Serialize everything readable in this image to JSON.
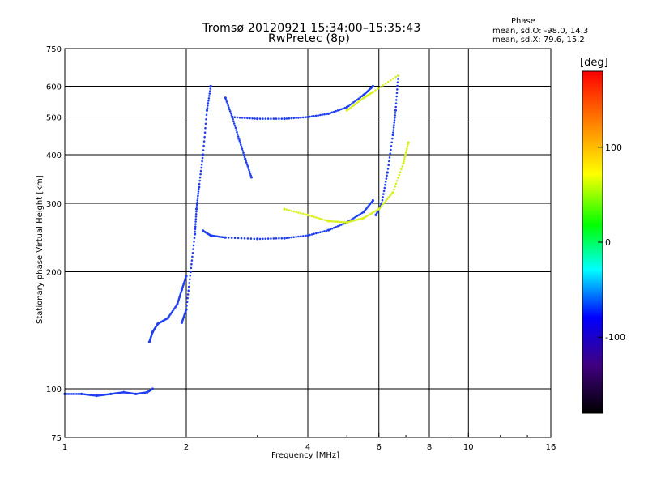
{
  "header": {
    "title_line1": "Tromsø 20120921 15:34:00–15:35:43",
    "title_line2": "RwPretec (8p)"
  },
  "phase_stats": {
    "title": "Phase",
    "o_line": "mean, sd,O: -98.0, 14.3",
    "x_line": "mean, sd,X:  79.6, 15.2"
  },
  "colorbar": {
    "unit_label": "[deg]",
    "tick_labels": [
      "100",
      "0",
      "-100"
    ],
    "tick_values": [
      100,
      0,
      -100
    ],
    "range": [
      -180,
      180
    ]
  },
  "chart_data": {
    "type": "scatter",
    "xlabel": "Frequency [MHz]",
    "ylabel": "Stationary phase Virtual Height [km]",
    "xscale": "log",
    "yscale": "log",
    "xlim": [
      1,
      16
    ],
    "ylim": [
      75,
      750
    ],
    "x_ticks": [
      1,
      2,
      4,
      6,
      8,
      10,
      16
    ],
    "x_tick_labels": [
      "1",
      "2",
      "4",
      "6",
      "8",
      "10",
      "16"
    ],
    "y_ticks": [
      75,
      100,
      200,
      300,
      400,
      500,
      600,
      750
    ],
    "y_tick_labels": [
      "75",
      "100",
      "200",
      "300",
      "400",
      "500",
      "600",
      "750"
    ],
    "grid": true,
    "color_by": "phase (deg)",
    "traces": [
      {
        "phase": -100,
        "points": [
          [
            1.0,
            97
          ],
          [
            1.1,
            97
          ],
          [
            1.2,
            96
          ],
          [
            1.3,
            97
          ],
          [
            1.4,
            98
          ],
          [
            1.5,
            97
          ],
          [
            1.6,
            98
          ],
          [
            1.65,
            100
          ]
        ]
      },
      {
        "phase": -100,
        "points": [
          [
            1.62,
            132
          ],
          [
            1.65,
            140
          ],
          [
            1.7,
            147
          ],
          [
            1.8,
            152
          ],
          [
            1.9,
            165
          ],
          [
            1.95,
            180
          ],
          [
            2.0,
            195
          ]
        ]
      },
      {
        "phase": -100,
        "points": [
          [
            1.95,
            148
          ],
          [
            2.0,
            160
          ],
          [
            2.05,
            200
          ],
          [
            2.1,
            250
          ],
          [
            2.12,
            290
          ],
          [
            2.15,
            330
          ],
          [
            2.2,
            400
          ],
          [
            2.25,
            520
          ],
          [
            2.3,
            600
          ]
        ]
      },
      {
        "phase": -100,
        "points": [
          [
            2.2,
            255
          ],
          [
            2.3,
            248
          ],
          [
            2.5,
            245
          ],
          [
            3.0,
            243
          ],
          [
            3.5,
            244
          ],
          [
            4.0,
            248
          ],
          [
            4.5,
            256
          ],
          [
            5.0,
            268
          ],
          [
            5.5,
            285
          ],
          [
            5.8,
            305
          ]
        ]
      },
      {
        "phase": -100,
        "points": [
          [
            2.5,
            560
          ],
          [
            2.6,
            500
          ],
          [
            2.7,
            440
          ],
          [
            2.8,
            390
          ],
          [
            2.9,
            350
          ]
        ]
      },
      {
        "phase": -100,
        "points": [
          [
            2.6,
            500
          ],
          [
            3.0,
            495
          ],
          [
            3.5,
            495
          ],
          [
            4.0,
            500
          ],
          [
            4.5,
            510
          ],
          [
            5.0,
            530
          ],
          [
            5.5,
            570
          ],
          [
            5.8,
            600
          ]
        ]
      },
      {
        "phase": -100,
        "points": [
          [
            5.9,
            280
          ],
          [
            6.1,
            300
          ],
          [
            6.3,
            360
          ],
          [
            6.5,
            450
          ],
          [
            6.6,
            520
          ],
          [
            6.7,
            640
          ]
        ]
      },
      {
        "phase": 100,
        "points": [
          [
            3.5,
            290
          ],
          [
            4.0,
            280
          ],
          [
            4.5,
            270
          ],
          [
            5.0,
            268
          ],
          [
            5.5,
            275
          ],
          [
            6.0,
            290
          ],
          [
            6.5,
            320
          ],
          [
            6.9,
            380
          ],
          [
            7.1,
            430
          ]
        ]
      },
      {
        "phase": 100,
        "points": [
          [
            5.0,
            520
          ],
          [
            5.5,
            560
          ],
          [
            5.8,
            580
          ],
          [
            6.7,
            640
          ]
        ]
      }
    ]
  }
}
